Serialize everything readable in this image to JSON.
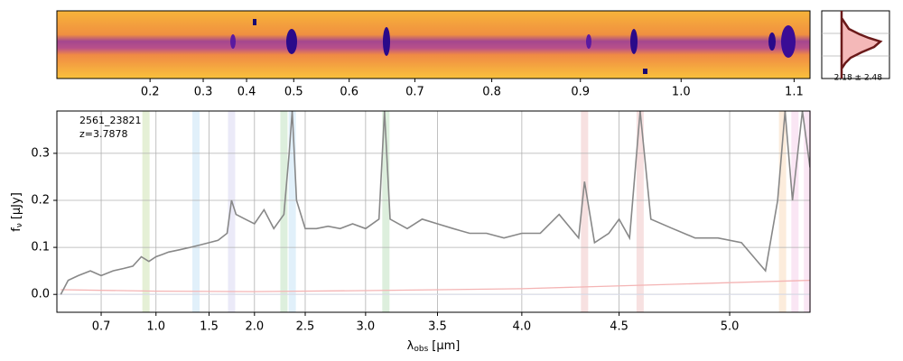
{
  "chart_data": {
    "type": "line",
    "object_label": "2561_23821",
    "redshift": {
      "value": 3.7878,
      "label": "z=3.7878"
    },
    "xlabel": [
      "λ",
      "obs",
      "[μm]"
    ],
    "ylabel": [
      "f",
      "ν",
      "[μJy]"
    ],
    "xlim": [
      0.56,
      5.33
    ],
    "ylim": [
      -0.038,
      0.39
    ],
    "xticks": [
      0.7,
      {
        "value": 1,
        "label": "1.0"
      },
      1.5,
      {
        "value": 2,
        "label": "2.0"
      },
      2.5,
      {
        "value": 3,
        "label": "3.0"
      },
      3.5,
      {
        "value": 4,
        "label": "4.0"
      },
      4.5,
      {
        "value": 5,
        "label": "5.0"
      }
    ],
    "yticks": [
      {
        "value": 0,
        "label": "0.0"
      },
      0.1,
      0.2,
      0.3
    ],
    "top_xticks": [
      0.2,
      0.3,
      0.4,
      0.5,
      0.6,
      0.7,
      0.8,
      0.9,
      {
        "value": 1,
        "label": "1.0"
      },
      1.1
    ],
    "grid": true,
    "side_panel_label": "2.18 ± 2.48",
    "bands": [
      {
        "x": 0.93,
        "color": "#b5d38a"
      },
      {
        "x": 1.36,
        "color": "#a9d4f0"
      },
      {
        "x": 1.75,
        "color": "#c7c3ec"
      },
      {
        "x": 2.3,
        "color": "#9fd09f"
      },
      {
        "x": 2.38,
        "color": "#a9d4f0"
      },
      {
        "x": 3.15,
        "color": "#9fd09f"
      },
      {
        "x": 4.33,
        "color": "#e8a8a8"
      },
      {
        "x": 4.6,
        "color": "#e8a8a8"
      },
      {
        "x": 5.22,
        "color": "#f5c99a"
      },
      {
        "x": 5.27,
        "color": "#f0b8e0"
      },
      {
        "x": 5.32,
        "color": "#f0b8e0"
      }
    ],
    "series": [
      {
        "name": "flux",
        "color": "#888888",
        "x": [
          0.57,
          0.59,
          0.62,
          0.66,
          0.7,
          0.75,
          0.8,
          0.85,
          0.9,
          0.95,
          1.0,
          1.05,
          1.1,
          1.2,
          1.3,
          1.4,
          1.5,
          1.6,
          1.7,
          1.75,
          1.8,
          1.9,
          2.0,
          2.1,
          2.2,
          2.3,
          2.35,
          2.38,
          2.42,
          2.5,
          2.6,
          2.7,
          2.8,
          2.9,
          3.0,
          3.1,
          3.14,
          3.18,
          3.3,
          3.4,
          3.5,
          3.6,
          3.7,
          3.8,
          3.9,
          4.0,
          4.1,
          4.2,
          4.3,
          4.33,
          4.38,
          4.45,
          4.5,
          4.55,
          4.6,
          4.65,
          4.75,
          4.85,
          4.95,
          5.05,
          5.15,
          5.2,
          5.23,
          5.26,
          5.3,
          5.33
        ],
        "values": [
          0.0,
          0.03,
          0.04,
          0.05,
          0.04,
          0.05,
          0.055,
          0.06,
          0.08,
          0.07,
          0.08,
          0.085,
          0.09,
          0.095,
          0.1,
          0.105,
          0.11,
          0.115,
          0.13,
          0.2,
          0.17,
          0.16,
          0.15,
          0.18,
          0.14,
          0.17,
          0.3,
          0.39,
          0.2,
          0.14,
          0.14,
          0.145,
          0.14,
          0.15,
          0.14,
          0.16,
          0.39,
          0.16,
          0.14,
          0.16,
          0.15,
          0.14,
          0.13,
          0.13,
          0.12,
          0.13,
          0.13,
          0.17,
          0.12,
          0.24,
          0.11,
          0.13,
          0.16,
          0.12,
          0.39,
          0.16,
          0.14,
          0.12,
          0.12,
          0.11,
          0.05,
          0.2,
          0.39,
          0.2,
          0.39,
          0.27
        ]
      },
      {
        "name": "error",
        "color": "#f4b4b4",
        "x": [
          0.57,
          1.0,
          2.0,
          3.0,
          4.0,
          5.0,
          5.33
        ],
        "values": [
          0.01,
          0.007,
          0.006,
          0.008,
          0.012,
          0.025,
          0.03
        ]
      }
    ]
  }
}
